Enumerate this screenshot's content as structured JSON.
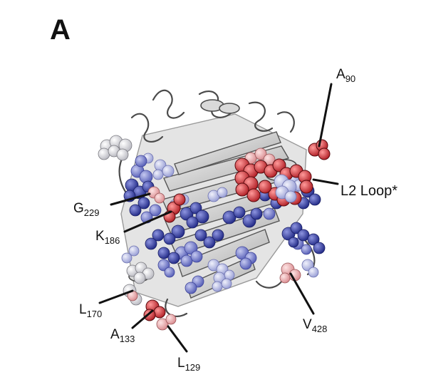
{
  "panel_letter": "A",
  "labels": {
    "a90": {
      "base": "A",
      "sub": "90"
    },
    "l2": {
      "text": "L2 Loop*"
    },
    "g229": {
      "base": "G",
      "sub": "229"
    },
    "k186": {
      "base": "K",
      "sub": "186"
    },
    "l170": {
      "base": "L",
      "sub": "170"
    },
    "a133": {
      "base": "A",
      "sub": "133"
    },
    "l129": {
      "base": "L",
      "sub": "129"
    },
    "v428": {
      "base": "V",
      "sub": "428"
    }
  },
  "colors": {
    "ribbon": "#9a9a9a",
    "strong_blue": "#3a43a8",
    "mid_blue": "#7f86cf",
    "light_blue": "#bcc1e8",
    "white_grey": "#e6e6ea",
    "light_red": "#f2b6b8",
    "strong_red": "#e0393e"
  }
}
